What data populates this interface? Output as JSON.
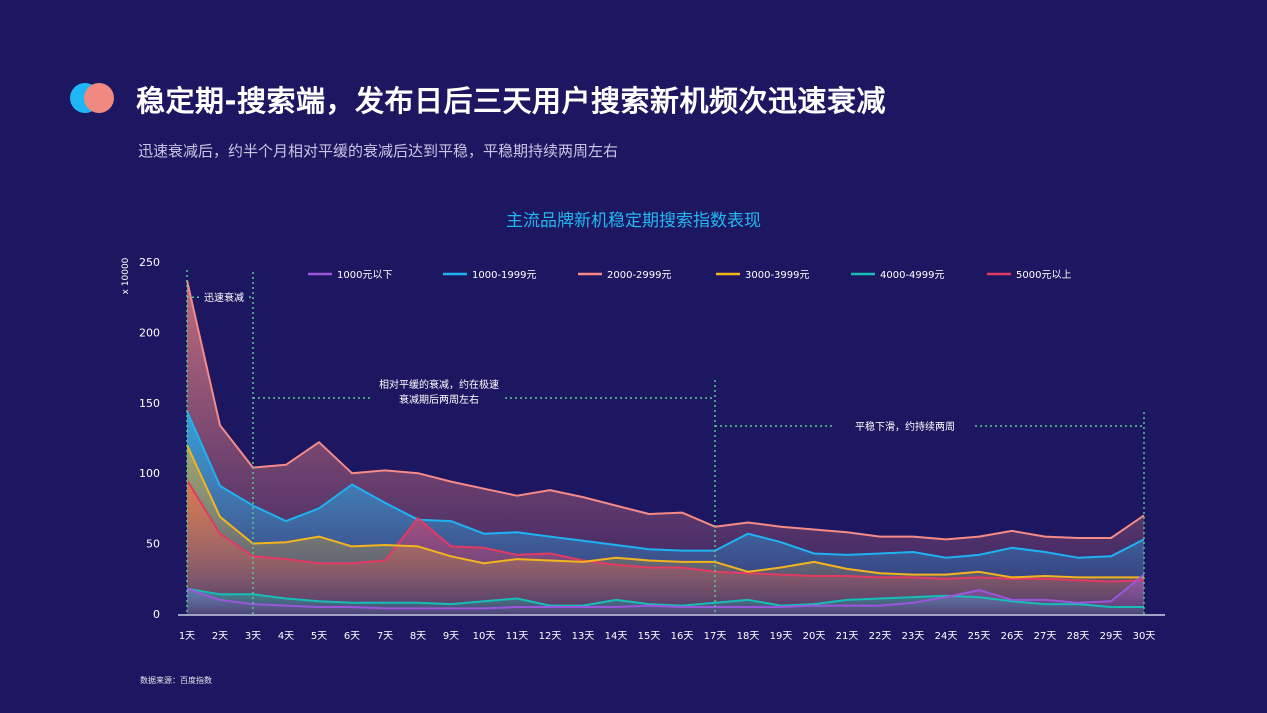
{
  "header": {
    "title": "稳定期-搜索端，发布日后三天用户搜索新机频次迅速衰减",
    "subtitle": "迅速衰减后，约半个月相对平缓的衰减后达到平稳，平稳期持续两周左右",
    "source": "数据来源：百度指数"
  },
  "colors": {
    "background": "#1d1660",
    "logo_left": "#1fb6f5",
    "logo_right": "#f08a80",
    "title_accent": "#21b8f2"
  },
  "chart_data": {
    "type": "area",
    "title": "主流品牌新机稳定期搜索指数表现",
    "ylabel": "x 10000",
    "xlabel": "",
    "ylim": [
      0,
      250
    ],
    "yticks": [
      0,
      50,
      100,
      150,
      200,
      250
    ],
    "categories": [
      "1天",
      "2天",
      "3天",
      "4天",
      "5天",
      "6天",
      "7天",
      "8天",
      "9天",
      "10天",
      "11天",
      "12天",
      "13天",
      "14天",
      "15天",
      "16天",
      "17天",
      "18天",
      "19天",
      "20天",
      "21天",
      "22天",
      "23天",
      "24天",
      "25天",
      "26天",
      "27天",
      "28天",
      "29天",
      "30天"
    ],
    "grid": false,
    "legend_position": "top",
    "series": [
      {
        "name": "1000元以下",
        "color": "#9b57d9",
        "values": [
          18,
          10,
          7,
          6,
          5,
          5,
          4,
          4,
          4,
          4,
          5,
          5,
          5,
          5,
          6,
          5,
          5,
          5,
          5,
          6,
          6,
          6,
          8,
          12,
          17,
          10,
          10,
          8,
          9,
          28
        ]
      },
      {
        "name": "1000-1999元",
        "color": "#1fb2f2",
        "values": [
          144,
          91,
          77,
          66,
          75,
          92,
          79,
          67,
          66,
          57,
          58,
          55,
          52,
          49,
          46,
          45,
          45,
          57,
          51,
          43,
          42,
          43,
          44,
          40,
          42,
          47,
          44,
          40,
          41,
          53
        ]
      },
      {
        "name": "2000-2999元",
        "color": "#f58a86",
        "values": [
          237,
          134,
          104,
          106,
          122,
          100,
          102,
          100,
          94,
          89,
          84,
          88,
          83,
          77,
          71,
          72,
          62,
          65,
          62,
          60,
          58,
          55,
          55,
          53,
          55,
          59,
          55,
          54,
          54,
          70
        ]
      },
      {
        "name": "3000-3999元",
        "color": "#f2b51d",
        "values": [
          120,
          69,
          50,
          51,
          55,
          48,
          49,
          48,
          41,
          36,
          39,
          38,
          37,
          40,
          38,
          37,
          37,
          30,
          33,
          37,
          32,
          29,
          28,
          28,
          30,
          26,
          27,
          26,
          26,
          26
        ]
      },
      {
        "name": "4000-4999元",
        "color": "#17bdb6",
        "values": [
          18,
          14,
          14,
          11,
          9,
          8,
          8,
          8,
          7,
          9,
          11,
          6,
          6,
          10,
          7,
          6,
          8,
          10,
          6,
          7,
          10,
          11,
          12,
          13,
          12,
          9,
          7,
          7,
          5,
          5
        ]
      },
      {
        "name": "5000元以上",
        "color": "#e23a64",
        "values": [
          95,
          57,
          41,
          39,
          36,
          36,
          38,
          68,
          48,
          47,
          42,
          43,
          38,
          35,
          33,
          33,
          30,
          29,
          28,
          27,
          27,
          26,
          26,
          25,
          26,
          25,
          25,
          24,
          23,
          24
        ]
      }
    ],
    "annotations": [
      {
        "text": "迅速衰减",
        "from_day": 1,
        "to_day": 3,
        "y": 225
      },
      {
        "text": "相对平缓的衰减，约在极速",
        "text2": "衰减期后两周左右",
        "from_day": 3,
        "to_day": 17,
        "y": 153
      },
      {
        "text": "平稳下滑，约持续两周",
        "from_day": 17,
        "to_day": 30,
        "y": 134
      }
    ]
  }
}
